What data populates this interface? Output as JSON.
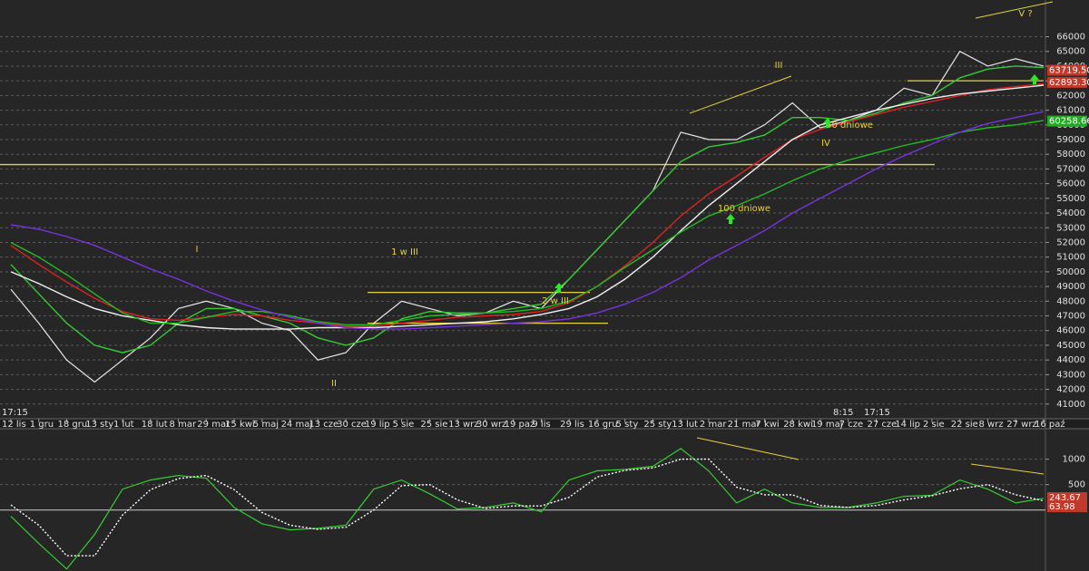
{
  "chart_data": [
    {
      "type": "line",
      "categories": [
        "12 lis",
        "1 gru",
        "18 gru",
        "13 sty",
        "1 lut",
        "18 lut",
        "8 mar",
        "29 mar",
        "15 kwi",
        "5 maj",
        "24 maj",
        "13 cze",
        "30 cze",
        "19 lip",
        "5 sie",
        "25 sie",
        "13 wrz",
        "30 wrz",
        "19 paź",
        "9 lis",
        "29 lis",
        "16 gru",
        "5 sty",
        "25 sty",
        "13 lut",
        "2 mar",
        "21 mar",
        "7 kwi",
        "28 kwi",
        "19 maj",
        "7 cze",
        "27 cze",
        "14 lip",
        "2 sie",
        "22 sie",
        "8 wrz",
        "27 wrz",
        "16 paź"
      ],
      "series": [
        {
          "color": "#e8e8e8",
          "values": [
            48800,
            46500,
            44000,
            42500,
            44000,
            45500,
            47500,
            48000,
            47500,
            46500,
            46000,
            44000,
            44500,
            46500,
            48000,
            47500,
            47000,
            47200,
            48000,
            47500,
            49500,
            51500,
            53500,
            55500,
            59500,
            59000,
            59000,
            60000,
            61500,
            59800,
            60300,
            61000,
            62500,
            62000,
            65000,
            64000,
            64500,
            64000
          ]
        },
        {
          "color": "#33cc33",
          "values": [
            50500,
            48500,
            46500,
            45000,
            44500,
            45000,
            46500,
            47500,
            47500,
            47000,
            46500,
            45500,
            45000,
            45500,
            46800,
            47300,
            47200,
            47200,
            47500,
            47800,
            49500,
            51500,
            53500,
            55500,
            57500,
            58500,
            58800,
            59300,
            60500,
            60500,
            60300,
            60800,
            61500,
            62000,
            63200,
            63800,
            64000,
            63900
          ]
        },
        {
          "color": "#dd2222",
          "values": [
            51800,
            50500,
            49300,
            48200,
            47300,
            46800,
            46700,
            46900,
            47100,
            47000,
            46700,
            46500,
            46300,
            46300,
            46500,
            46700,
            46900,
            47000,
            47100,
            47300,
            47900,
            49000,
            50400,
            52000,
            53800,
            55300,
            56500,
            57800,
            59000,
            59700,
            60200,
            60700,
            61200,
            61600,
            62000,
            62400,
            62600,
            62800
          ]
        },
        {
          "color": "#f0f0f0",
          "values": [
            50000,
            49200,
            48300,
            47500,
            47000,
            46700,
            46400,
            46200,
            46100,
            46100,
            46100,
            46200,
            46200,
            46200,
            46300,
            46400,
            46500,
            46600,
            46800,
            47100,
            47500,
            48300,
            49500,
            51000,
            52800,
            54500,
            56000,
            57500,
            59000,
            60000,
            60500,
            61000,
            61400,
            61800,
            62100,
            62300,
            62500,
            62700
          ]
        },
        {
          "color": "#22bb22",
          "values": [
            52000,
            51000,
            49800,
            48500,
            47200,
            46500,
            46500,
            46900,
            47300,
            47300,
            47000,
            46600,
            46400,
            46400,
            46700,
            47000,
            47100,
            47200,
            47300,
            47500,
            48000,
            49000,
            50300,
            51500,
            52700,
            53800,
            54500,
            55300,
            56200,
            57000,
            57600,
            58100,
            58600,
            59000,
            59500,
            59800,
            60000,
            60300
          ]
        },
        {
          "color": "#7733dd",
          "values": [
            53200,
            52900,
            52400,
            51800,
            51000,
            50200,
            49500,
            48700,
            48000,
            47400,
            46900,
            46500,
            46200,
            46100,
            46100,
            46200,
            46300,
            46400,
            46500,
            46600,
            46800,
            47200,
            47800,
            48600,
            49600,
            50800,
            51800,
            52800,
            54000,
            55000,
            56000,
            57000,
            57900,
            58700,
            59500,
            60100,
            60500,
            60900
          ]
        }
      ],
      "ylim": [
        40000,
        68500
      ],
      "yticks": [
        41000,
        42000,
        43000,
        44000,
        45000,
        46000,
        47000,
        48000,
        49000,
        50000,
        51000,
        52000,
        53000,
        54000,
        55000,
        56000,
        57000,
        58000,
        59000,
        60000,
        61000,
        62000,
        63000,
        64000,
        65000,
        66000
      ],
      "grid": true,
      "levels": [
        57300,
        48600,
        46500,
        63000
      ],
      "level_color": "#e6d23c",
      "annotations": [
        "I",
        "II",
        "III",
        "IV",
        "V ?",
        "1 w III",
        "2 w III",
        "100 dniowe",
        "50 dniowe"
      ],
      "time_labels": [
        "17:15",
        "8:15",
        "17:15"
      ],
      "price_labels": [
        {
          "value": 63719.5,
          "label": "63719.50",
          "color": "#c0392b"
        },
        {
          "value": 62893.3,
          "label": "62893.30",
          "color": "#c0392b"
        },
        {
          "value": 60258.66,
          "label": "60258.66",
          "color": "#22aa22"
        }
      ]
    },
    {
      "type": "line",
      "series": [
        {
          "color": "#33cc33",
          "values": [
            -125,
            -660,
            -1160,
            -480,
            410,
            590,
            680,
            625,
            50,
            -270,
            -390,
            -360,
            -300,
            410,
            590,
            320,
            20,
            50,
            140,
            -35,
            590,
            770,
            800,
            860,
            1210,
            770,
            140,
            410,
            140,
            50,
            50,
            140,
            270,
            290,
            590,
            410,
            140,
            230
          ]
        },
        {
          "color": "#ffffff",
          "values": [
            100,
            -300,
            -900,
            -900,
            -100,
            400,
            620,
            680,
            400,
            -50,
            -300,
            -380,
            -340,
            0,
            480,
            500,
            200,
            30,
            80,
            80,
            250,
            650,
            780,
            830,
            1000,
            1000,
            450,
            300,
            300,
            90,
            50,
            90,
            200,
            280,
            420,
            500,
            300,
            180
          ]
        }
      ],
      "ylim": [
        -1200,
        1600
      ],
      "yticks": [
        1000,
        500
      ],
      "zero": 0,
      "price_labels": [
        {
          "value": 243.67,
          "label": "243.67",
          "color": "#c0392b"
        },
        {
          "value": 63.98,
          "label": "63.98",
          "color": "#c0392b"
        }
      ]
    }
  ]
}
